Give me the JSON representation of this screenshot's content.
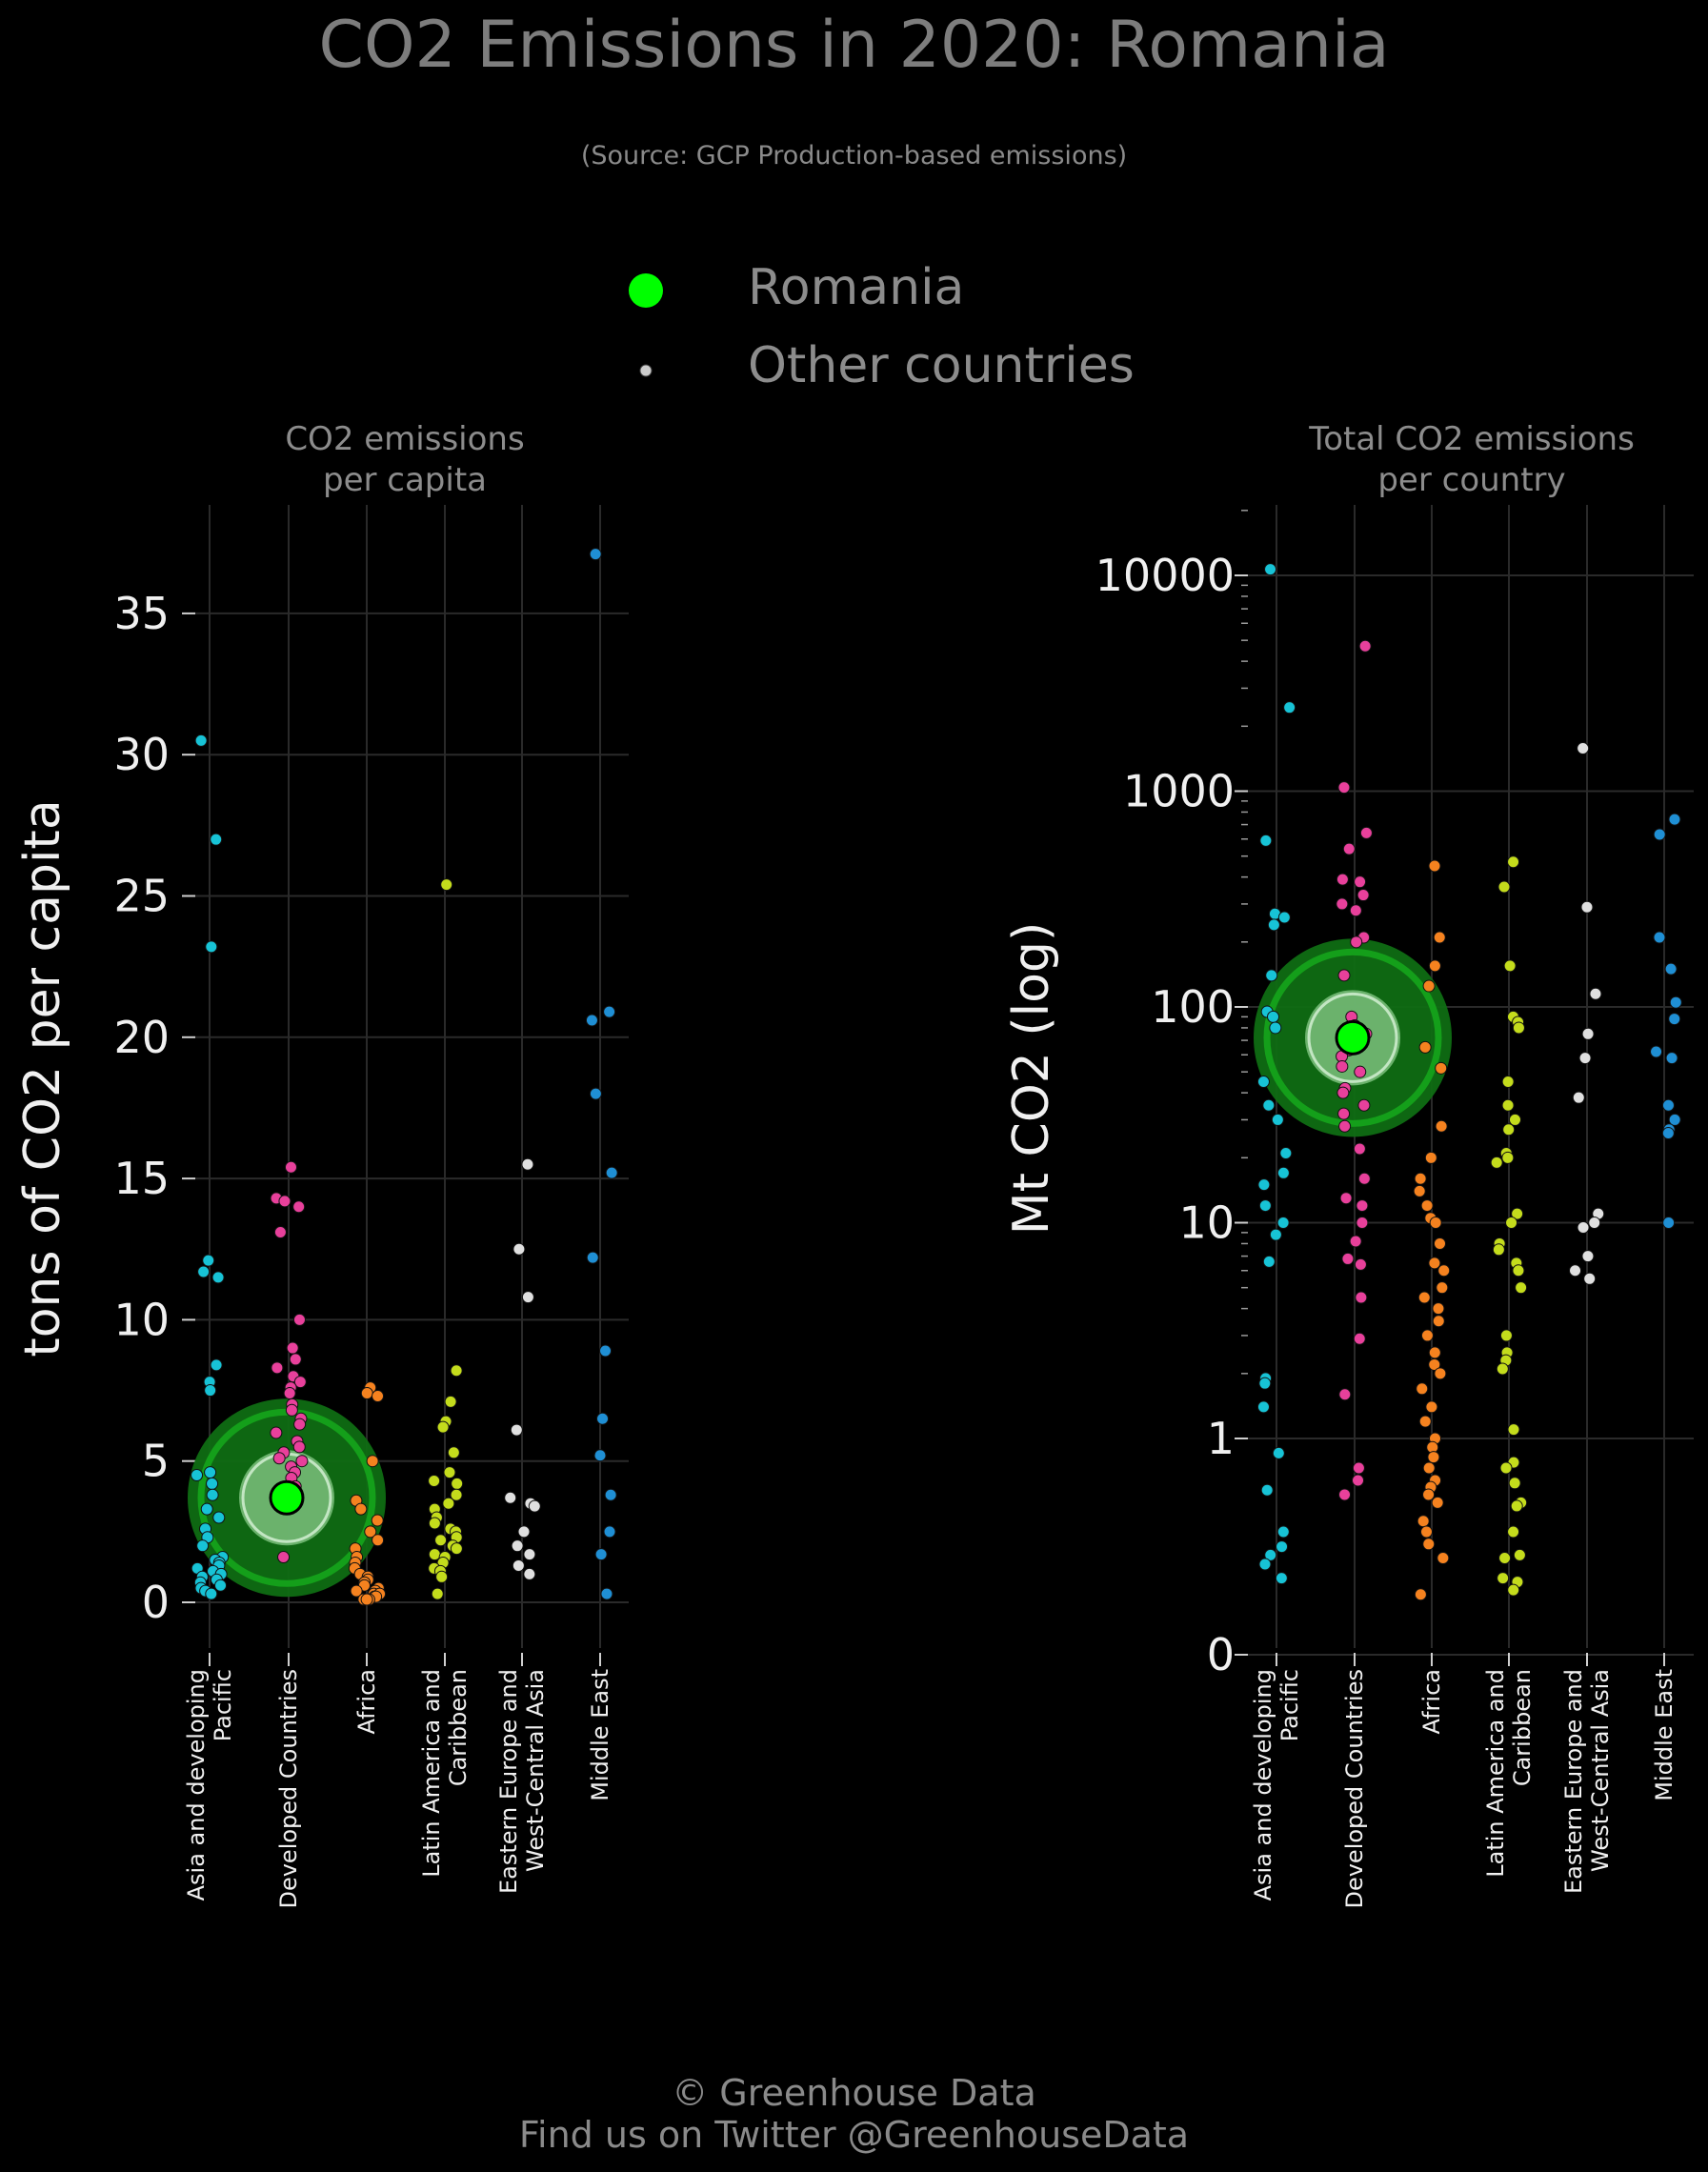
{
  "title": "CO2 Emissions in 2020: Romania",
  "subtitle": "(Source: GCP Production-based emissions)",
  "legend": {
    "highlight_label": "Romania",
    "others_label": "Other countries",
    "highlight_color": "#00ff00",
    "others_color": "#cccccc"
  },
  "footer": {
    "line1": "© Greenhouse Data",
    "line2": "Find us on Twitter @GreenhouseData"
  },
  "chart_data": [
    {
      "type": "scatter",
      "title": "CO2 emissions\nper capita",
      "ylabel": "tons of CO2 per capita",
      "ylim": [
        -1.8,
        39
      ],
      "yscale": "linear",
      "yticks": [
        0,
        5,
        10,
        15,
        20,
        25,
        30,
        35
      ],
      "ytick_labels": [
        "0",
        "5",
        "10",
        "15",
        "20",
        "25",
        "30",
        "35"
      ],
      "grid": true,
      "categories": [
        "Asia and developing\nPacific",
        "Developed Countries",
        "Africa",
        "Latin America and\nCaribbean",
        "Eastern Europe and\nWest-Central Asia",
        "Middle East"
      ],
      "category_colors": [
        "#17c3d6",
        "#e8409b",
        "#f5821f",
        "#c4dc1c",
        "#e0e0e0",
        "#1f8fd4"
      ],
      "highlight": {
        "name": "Romania",
        "category": "Developed Countries",
        "value": 3.7
      },
      "series": [
        {
          "category": "Asia and developing\nPacific",
          "values": [
            30.5,
            27.0,
            23.2,
            12.1,
            11.7,
            11.5,
            8.4,
            7.8,
            7.5,
            4.6,
            4.5,
            4.2,
            3.8,
            3.3,
            3.0,
            2.6,
            2.3,
            2.0,
            1.6,
            1.5,
            1.4,
            1.3,
            1.2,
            1.1,
            1.0,
            0.9,
            0.8,
            0.7,
            0.6,
            0.5,
            0.4,
            0.3
          ]
        },
        {
          "category": "Developed Countries",
          "values": [
            15.4,
            14.3,
            14.2,
            14.0,
            13.1,
            10.0,
            9.0,
            8.6,
            8.3,
            8.0,
            7.8,
            7.6,
            7.4,
            7.0,
            6.8,
            6.5,
            6.3,
            6.0,
            5.7,
            5.5,
            5.3,
            5.1,
            5.0,
            4.8,
            4.6,
            4.4,
            4.1,
            3.9,
            1.6
          ]
        },
        {
          "category": "Africa",
          "values": [
            7.6,
            7.4,
            7.3,
            5.0,
            3.6,
            3.3,
            2.9,
            2.5,
            2.2,
            1.9,
            1.6,
            1.4,
            1.2,
            1.0,
            0.9,
            0.8,
            0.7,
            0.6,
            0.5,
            0.4,
            0.4,
            0.3,
            0.3,
            0.2,
            0.2,
            0.1,
            0.1,
            0.1
          ]
        },
        {
          "category": "Latin America and\nCaribbean",
          "values": [
            25.4,
            8.2,
            7.1,
            6.4,
            6.2,
            5.3,
            4.6,
            4.3,
            4.2,
            3.8,
            3.5,
            3.3,
            3.0,
            2.8,
            2.6,
            2.5,
            2.3,
            2.2,
            2.0,
            1.9,
            1.7,
            1.6,
            1.4,
            1.2,
            1.1,
            0.9,
            0.3
          ]
        },
        {
          "category": "Eastern Europe and\nWest-Central Asia",
          "values": [
            15.5,
            12.5,
            10.8,
            6.1,
            3.7,
            3.5,
            3.4,
            2.5,
            2.0,
            1.7,
            1.3,
            1.0
          ]
        },
        {
          "category": "Middle East",
          "values": [
            37.1,
            20.9,
            20.6,
            18.0,
            15.2,
            12.2,
            8.9,
            6.5,
            5.2,
            3.8,
            2.5,
            1.7,
            0.3
          ]
        }
      ]
    },
    {
      "type": "scatter",
      "title": "Total CO2 emissions\nper country",
      "ylabel": "Mt CO2 (log)",
      "yscale": "log",
      "yticks": [
        0,
        1,
        10,
        100,
        1000,
        10000
      ],
      "ytick_labels": [
        "0",
        "1",
        "10",
        "100",
        "1000",
        "10000"
      ],
      "grid": true,
      "categories": [
        "Asia and developing\nPacific",
        "Developed Countries",
        "Africa",
        "Latin America and\nCaribbean",
        "Eastern Europe and\nWest-Central Asia",
        "Middle East"
      ],
      "category_colors": [
        "#17c3d6",
        "#e8409b",
        "#f5821f",
        "#c4dc1c",
        "#e0e0e0",
        "#1f8fd4"
      ],
      "highlight": {
        "name": "Romania",
        "category": "Developed Countries",
        "value": 72
      },
      "series": [
        {
          "category": "Asia and developing\nPacific",
          "values": [
            10668,
            2442,
            590,
            270,
            260,
            240,
            140,
            95,
            90,
            80,
            45,
            35,
            30,
            21,
            17,
            15,
            12,
            10,
            8.8,
            6.6,
            1.9,
            1.8,
            1.4,
            0.84,
            0.53,
            0.3,
            0.24,
            0.21,
            0.18,
            0.14
          ]
        },
        {
          "category": "Developed Countries",
          "values": [
            4700,
            1040,
            640,
            540,
            390,
            380,
            330,
            300,
            280,
            210,
            200,
            140,
            90,
            82,
            75,
            72,
            67,
            63,
            59,
            53,
            50,
            42,
            40,
            35,
            32,
            28,
            22,
            16,
            13,
            12,
            10,
            8.2,
            6.8,
            6.4,
            4.5,
            2.9,
            1.6,
            0.7,
            0.6,
            0.5
          ]
        },
        {
          "category": "Africa",
          "values": [
            450,
            210,
            155,
            125,
            65,
            52,
            28,
            20,
            16,
            14,
            12,
            10.5,
            10,
            8,
            6.5,
            6,
            5,
            4.5,
            4,
            3.5,
            3,
            2.5,
            2.2,
            2,
            1.7,
            1.4,
            1.2,
            1,
            0.9,
            0.8,
            0.7,
            0.6,
            0.55,
            0.5,
            0.45,
            0.35,
            0.3,
            0.25,
            0.2,
            0.1
          ]
        },
        {
          "category": "Latin America and\nCaribbean",
          "values": [
            470,
            360,
            155,
            90,
            85,
            80,
            45,
            35,
            30,
            27,
            21,
            20,
            19,
            11,
            10,
            8,
            7.5,
            6.5,
            6,
            5,
            3,
            2.5,
            2.3,
            2.1,
            1.1,
            0.75,
            0.7,
            0.58,
            0.45,
            0.43,
            0.3,
            0.21,
            0.2,
            0.14,
            0.13,
            0.11
          ]
        },
        {
          "category": "Eastern Europe and\nWest-Central Asia",
          "values": [
            1580,
            290,
            115,
            75,
            58,
            38,
            11,
            10,
            9.5,
            7,
            6,
            5.5
          ]
        },
        {
          "category": "Middle East",
          "values": [
            740,
            630,
            210,
            150,
            105,
            88,
            62,
            58,
            35,
            30,
            27,
            26,
            10
          ]
        }
      ]
    }
  ]
}
